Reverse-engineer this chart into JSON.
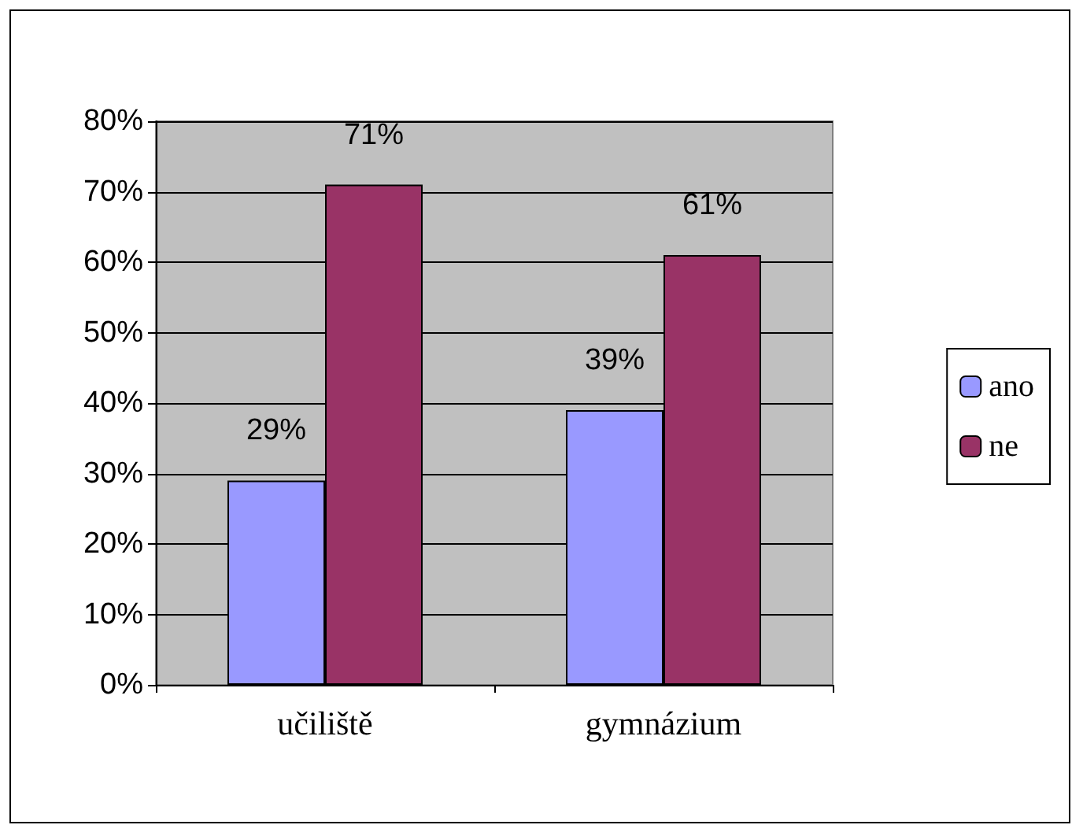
{
  "chart_data": {
    "type": "bar",
    "categories": [
      "učiliště",
      "gymnázium"
    ],
    "series": [
      {
        "name": "ano",
        "color": "#9999ff",
        "values": [
          29,
          39
        ],
        "value_labels": [
          "29%",
          "39%"
        ]
      },
      {
        "name": "ne",
        "color": "#993366",
        "values": [
          71,
          61
        ],
        "value_labels": [
          "71%",
          "61%"
        ]
      }
    ],
    "ylim": [
      0,
      80
    ],
    "yticks": [
      {
        "value": 0,
        "label": "0%"
      },
      {
        "value": 10,
        "label": "10%"
      },
      {
        "value": 20,
        "label": "20%"
      },
      {
        "value": 30,
        "label": "30%"
      },
      {
        "value": 40,
        "label": "40%"
      },
      {
        "value": 50,
        "label": "50%"
      },
      {
        "value": 60,
        "label": "60%"
      },
      {
        "value": 70,
        "label": "70%"
      },
      {
        "value": 80,
        "label": "80%"
      }
    ],
    "grid": "y",
    "legend": "right"
  }
}
